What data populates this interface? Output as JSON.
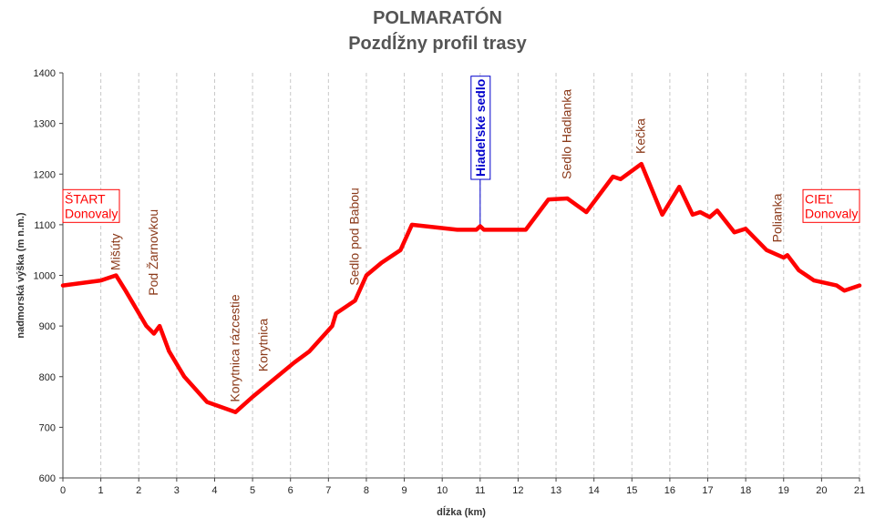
{
  "chart_data": {
    "type": "line",
    "title": "POLMARATÓN",
    "subtitle": "Pozdĺžny profil trasy",
    "xlabel": "dĺžka (km)",
    "ylabel": "nadmorská výška (m n.m.)",
    "xlim": [
      0,
      21
    ],
    "ylim": [
      600,
      1400
    ],
    "xticks": [
      0,
      1,
      2,
      3,
      4,
      5,
      6,
      7,
      8,
      9,
      10,
      11,
      12,
      13,
      14,
      15,
      16,
      17,
      18,
      19,
      20,
      21
    ],
    "yticks": [
      600,
      700,
      800,
      900,
      1000,
      1100,
      1200,
      1300,
      1400
    ],
    "grid": "vertical dashed",
    "colors": {
      "line": "#ff0000",
      "label": "#8b3a1a",
      "highlight": "#0000cc",
      "box_border": "#ff0000",
      "highlight_border": "#0000cc"
    },
    "series": [
      {
        "x": [
          0,
          1.0,
          1.4,
          1.65,
          2.2,
          2.4,
          2.55,
          2.8,
          3.2,
          3.8,
          4.55,
          5.0,
          6.1,
          6.5,
          7.1,
          7.2,
          7.7,
          8.0,
          8.4,
          8.9,
          9.2,
          10.4,
          10.9,
          11.0,
          11.1,
          11.6,
          12.2,
          12.8,
          13.3,
          13.8,
          14.5,
          14.7,
          15.25,
          15.8,
          16.25,
          16.6,
          16.8,
          17.05,
          17.25,
          17.7,
          18.0,
          18.55,
          19.0,
          19.1,
          19.4,
          19.8,
          20.4,
          20.6,
          21.0
        ],
        "y": [
          980,
          990,
          1000,
          970,
          900,
          885,
          900,
          850,
          800,
          750,
          730,
          760,
          828,
          850,
          900,
          925,
          950,
          1000,
          1025,
          1050,
          1100,
          1090,
          1090,
          1097,
          1090,
          1090,
          1090,
          1150,
          1152,
          1125,
          1195,
          1190,
          1220,
          1120,
          1175,
          1120,
          1125,
          1115,
          1128,
          1085,
          1092,
          1050,
          1035,
          1040,
          1010,
          990,
          980,
          970,
          980
        ]
      }
    ],
    "annotations": [
      {
        "text": "ŠTART\nDonovaly",
        "x": 0.0,
        "y": 1110,
        "style": "box",
        "color": "#ff0000"
      },
      {
        "text": "Mišúty",
        "x": 1.4,
        "y": 1010,
        "style": "vertical",
        "color": "#8b3a1a"
      },
      {
        "text": "Pod Žarnovkou",
        "x": 2.4,
        "y": 960,
        "style": "vertical",
        "color": "#8b3a1a"
      },
      {
        "text": "Korytnica rázcestie",
        "x": 4.55,
        "y": 750,
        "style": "vertical",
        "color": "#8b3a1a"
      },
      {
        "text": "Korytnica",
        "x": 5.3,
        "y": 810,
        "style": "vertical",
        "color": "#8b3a1a"
      },
      {
        "text": "Sedlo pod Babou",
        "x": 7.7,
        "y": 980,
        "style": "vertical",
        "color": "#8b3a1a"
      },
      {
        "text": "Hiadeľské sedlo",
        "x": 11.0,
        "y": 1195,
        "style": "vertical-box-bold",
        "color": "#0000cc"
      },
      {
        "text": "Sedlo Hadlanka",
        "x": 13.3,
        "y": 1190,
        "style": "vertical",
        "color": "#8b3a1a"
      },
      {
        "text": "Kečka",
        "x": 15.25,
        "y": 1240,
        "style": "vertical",
        "color": "#8b3a1a"
      },
      {
        "text": "Polianka",
        "x": 18.85,
        "y": 1065,
        "style": "vertical",
        "color": "#8b3a1a"
      },
      {
        "text": "CIEĽ\nDonovaly",
        "x": 21.0,
        "y": 1110,
        "style": "box",
        "color": "#ff0000"
      }
    ]
  }
}
